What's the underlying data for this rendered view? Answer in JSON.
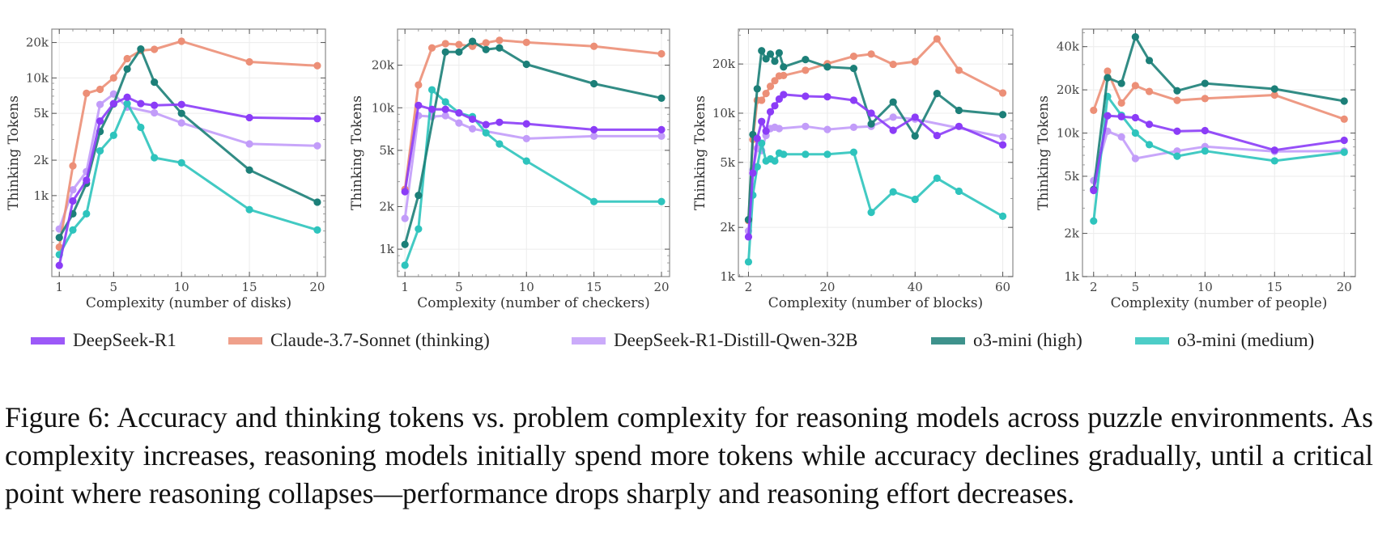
{
  "series_meta": [
    {
      "name": "DeepSeek-R1",
      "color": "#8b3cf7"
    },
    {
      "name": "Claude-3.7-Sonnet (thinking)",
      "color": "#ec8f77"
    },
    {
      "name": "DeepSeek-R1-Distill-Qwen-32B",
      "color": "#c29cf9"
    },
    {
      "name": "o3-mini (high)",
      "color": "#1c7f78"
    },
    {
      "name": "o3-mini (medium)",
      "color": "#2ec4bd"
    }
  ],
  "legend": {
    "items": [
      {
        "label": "DeepSeek-R1",
        "color": "#8b3cf7"
      },
      {
        "label": "Claude-3.7-Sonnet (thinking)",
        "color": "#ec8f77"
      },
      {
        "label": "DeepSeek-R1-Distill-Qwen-32B",
        "color": "#c29cf9"
      },
      {
        "label": "o3-mini (high)",
        "color": "#1c7f78"
      },
      {
        "label": "o3-mini (medium)",
        "color": "#2ec4bd"
      }
    ]
  },
  "caption": "Figure 6: Accuracy and thinking tokens vs. problem complexity for reasoning models across puzzle environments. As complexity increases, reasoning models initially spend more tokens while accuracy declines gradually, until a critical point where reasoning collapses—performance drops sharply and reasoning effort decreases.",
  "chart_data": [
    {
      "type": "line",
      "title": "",
      "xlabel": "Complexity (number of disks)",
      "ylabel": "Thinking Tokens",
      "yscale": "log",
      "xlim": [
        0.45,
        20.6
      ],
      "ylim": [
        205,
        26000
      ],
      "xticks": [
        1,
        5,
        10,
        15,
        20
      ],
      "xtick_labels": [
        "1",
        "5",
        "10",
        "15",
        "20"
      ],
      "yticks": [
        1000,
        2000,
        5000,
        10000,
        20000
      ],
      "ytick_labels": [
        "1k",
        "2k",
        "5k",
        "10k",
        "20k"
      ],
      "grid": true,
      "series": [
        {
          "name": "DeepSeek-R1",
          "x": [
            1,
            2,
            3,
            4,
            5,
            6,
            7,
            8,
            10,
            15,
            20
          ],
          "values": [
            255,
            900,
            1350,
            4300,
            6050,
            6850,
            6050,
            5850,
            5950,
            4600,
            4500
          ]
        },
        {
          "name": "Claude-3.7-Sonnet (thinking)",
          "x": [
            1,
            2,
            3,
            4,
            5,
            6,
            7,
            8,
            10,
            15,
            20
          ],
          "values": [
            365,
            1790,
            7400,
            8000,
            10000,
            14600,
            17100,
            17500,
            20500,
            13700,
            12700
          ]
        },
        {
          "name": "DeepSeek-R1-Distill-Qwen-32B",
          "x": [
            1,
            2,
            3,
            4,
            5,
            6,
            8,
            10,
            15,
            20
          ],
          "values": [
            520,
            1120,
            1600,
            5950,
            7300,
            5650,
            5050,
            4150,
            2750,
            2650
          ]
        },
        {
          "name": "o3-mini (high)",
          "x": [
            1,
            2,
            3,
            4,
            5,
            6,
            7,
            8,
            10,
            15,
            20
          ],
          "values": [
            440,
            700,
            1270,
            3500,
            6000,
            11900,
            17600,
            9200,
            5000,
            1650,
            880
          ]
        },
        {
          "name": "o3-mini (medium)",
          "x": [
            1,
            2,
            3,
            4,
            5,
            6,
            7,
            8,
            10,
            15,
            20
          ],
          "values": [
            315,
            510,
            700,
            2400,
            3250,
            6050,
            3800,
            2100,
            1900,
            760,
            510
          ]
        }
      ]
    },
    {
      "type": "line",
      "title": "",
      "xlabel": "Complexity (number of checkers)",
      "ylabel": "Thinking Tokens",
      "yscale": "log",
      "xlim": [
        0.45,
        20.6
      ],
      "ylim": [
        640,
        36000
      ],
      "xticks": [
        1,
        5,
        10,
        15,
        20
      ],
      "xtick_labels": [
        "1",
        "5",
        "10",
        "15",
        "20"
      ],
      "yticks": [
        1000,
        2000,
        5000,
        10000,
        20000
      ],
      "ytick_labels": [
        "1k",
        "2k",
        "5k",
        "10k",
        "20k"
      ],
      "grid": true,
      "series": [
        {
          "name": "DeepSeek-R1",
          "x": [
            1,
            2,
            3,
            4,
            5,
            6,
            7,
            8,
            10,
            15,
            20
          ],
          "values": [
            2550,
            10400,
            9750,
            9750,
            9200,
            8300,
            7600,
            7900,
            7700,
            7000,
            7000
          ]
        },
        {
          "name": "Claude-3.7-Sonnet (thinking)",
          "x": [
            1,
            2,
            3,
            4,
            5,
            6,
            7,
            8,
            10,
            15,
            20
          ],
          "values": [
            2650,
            14500,
            26500,
            28400,
            28000,
            27200,
            28800,
            30000,
            29000,
            27200,
            24100
          ]
        },
        {
          "name": "DeepSeek-R1-Distill-Qwen-32B",
          "x": [
            1,
            2,
            3,
            4,
            5,
            6,
            10,
            15,
            20
          ],
          "values": [
            1650,
            8800,
            8650,
            8800,
            7800,
            7100,
            6050,
            6300,
            6300
          ]
        },
        {
          "name": "o3-mini (high)",
          "x": [
            1,
            2,
            4,
            5,
            6,
            7,
            8,
            10,
            15,
            20
          ],
          "values": [
            1080,
            2400,
            24800,
            24800,
            29500,
            25800,
            26500,
            20300,
            14800,
            11700
          ]
        },
        {
          "name": "o3-mini (medium)",
          "x": [
            1,
            2,
            3,
            4,
            5,
            6,
            7,
            8,
            10,
            15,
            20
          ],
          "values": [
            770,
            1390,
            13400,
            11000,
            9200,
            8650,
            6650,
            5550,
            4200,
            2170,
            2170
          ]
        }
      ]
    },
    {
      "type": "line",
      "title": "",
      "xlabel": "Complexity (number of blocks)",
      "ylabel": "Thinking Tokens",
      "yscale": "log",
      "xlim": [
        -0.3,
        62.3
      ],
      "ylim": [
        1000,
        32700
      ],
      "xticks": [
        2,
        20,
        40,
        60
      ],
      "xtick_labels": [
        "2",
        "20",
        "40",
        "60"
      ],
      "yticks": [
        1000,
        2000,
        5000,
        10000,
        20000
      ],
      "ytick_labels": [
        "1k",
        "2k",
        "5k",
        "10k",
        "20k"
      ],
      "grid": true,
      "series": [
        {
          "name": "DeepSeek-R1",
          "x": [
            2,
            3,
            4,
            5,
            6,
            7,
            8,
            9,
            10,
            15,
            20,
            26,
            30,
            35,
            40,
            45,
            50,
            60
          ],
          "values": [
            1750,
            4300,
            7000,
            8900,
            7770,
            10200,
            11100,
            12200,
            13000,
            12700,
            12600,
            12000,
            10000,
            7860,
            9450,
            7300,
            8300,
            6400
          ]
        },
        {
          "name": "Claude-3.7-Sonnet (thinking)",
          "x": [
            2,
            3,
            4,
            5,
            6,
            7,
            8,
            9,
            10,
            15,
            20,
            26,
            30,
            35,
            40,
            45,
            50,
            60
          ],
          "values": [
            2200,
            6900,
            12000,
            12000,
            13200,
            14600,
            15800,
            16900,
            17000,
            18300,
            20100,
            22300,
            23000,
            19900,
            20700,
            28500,
            18300,
            13300
          ]
        },
        {
          "name": "DeepSeek-R1-Distill-Qwen-32B",
          "x": [
            2,
            3,
            4,
            5,
            6,
            7,
            8,
            9,
            15,
            20,
            26,
            30,
            35,
            40,
            60
          ],
          "values": [
            1900,
            4500,
            6100,
            5900,
            7300,
            8050,
            8200,
            8050,
            8300,
            7950,
            8200,
            8300,
            9450,
            9200,
            7150
          ]
        },
        {
          "name": "o3-mini (high)",
          "x": [
            2,
            3,
            4,
            5,
            6,
            7,
            8,
            9,
            10,
            15,
            20,
            26,
            30,
            35,
            40,
            45,
            50,
            60
          ],
          "values": [
            2230,
            7400,
            14100,
            24100,
            21500,
            23000,
            20800,
            23400,
            19200,
            21300,
            19200,
            18800,
            8600,
            11700,
            7250,
            13200,
            10400,
            9800
          ]
        },
        {
          "name": "o3-mini (medium)",
          "x": [
            2,
            3,
            4,
            5,
            6,
            7,
            8,
            9,
            10,
            15,
            20,
            26,
            30,
            35,
            40,
            45,
            50,
            60
          ],
          "values": [
            1230,
            3150,
            4700,
            6550,
            5100,
            5250,
            5100,
            5700,
            5600,
            5600,
            5600,
            5770,
            2470,
            3300,
            2970,
            4000,
            3330,
            2340
          ]
        }
      ]
    },
    {
      "type": "line",
      "title": "",
      "xlabel": "Complexity (number of people)",
      "ylabel": "Thinking Tokens",
      "yscale": "log",
      "xlim": [
        1.2,
        20.8
      ],
      "ylim": [
        1000,
        53000
      ],
      "xticks": [
        2,
        5,
        10,
        15,
        20
      ],
      "xtick_labels": [
        "2",
        "5",
        "10",
        "15",
        "20"
      ],
      "yticks": [
        1000,
        2000,
        5000,
        10000,
        20000,
        40000
      ],
      "ytick_labels": [
        "1k",
        "2k",
        "5k",
        "10k",
        "20k",
        "40k"
      ],
      "grid": true,
      "series": [
        {
          "name": "DeepSeek-R1",
          "x": [
            2,
            3,
            4,
            5,
            6,
            8,
            10,
            15,
            20
          ],
          "values": [
            3980,
            13200,
            13000,
            12800,
            11500,
            10300,
            10400,
            7600,
            8900
          ]
        },
        {
          "name": "Claude-3.7-Sonnet (thinking)",
          "x": [
            2,
            3,
            4,
            5,
            6,
            8,
            10,
            15,
            20
          ],
          "values": [
            14400,
            27000,
            16200,
            21400,
            19500,
            16900,
            17400,
            18400,
            12500
          ]
        },
        {
          "name": "DeepSeek-R1-Distill-Qwen-32B",
          "x": [
            2,
            3,
            4,
            5,
            8,
            10,
            15,
            20
          ],
          "values": [
            4660,
            10300,
            9400,
            6650,
            7500,
            8050,
            7450,
            7500
          ]
        },
        {
          "name": "o3-mini (high)",
          "x": [
            2,
            3,
            4,
            5,
            6,
            8,
            10,
            15,
            20
          ],
          "values": [
            4050,
            24300,
            22200,
            46800,
            32000,
            19700,
            22200,
            20300,
            16700
          ]
        },
        {
          "name": "o3-mini (medium)",
          "x": [
            2,
            3,
            4,
            5,
            6,
            8,
            10,
            15,
            20
          ],
          "values": [
            2440,
            18000,
            13300,
            10000,
            8300,
            6900,
            7500,
            6400,
            7350
          ]
        }
      ]
    }
  ]
}
